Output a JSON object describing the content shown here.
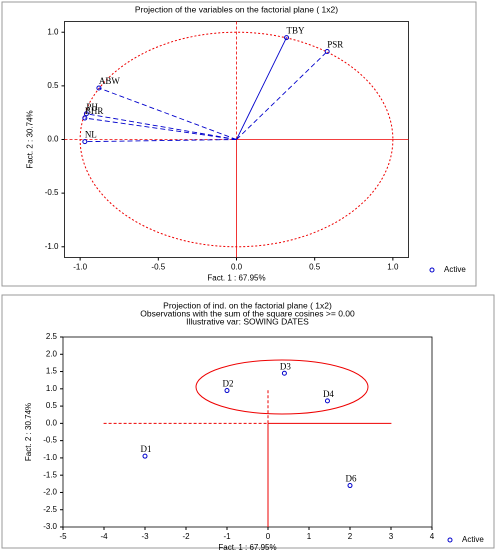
{
  "charts": [
    {
      "chart_data": {
        "type": "scatter",
        "title": "Projection of the variables on the factorial plane ( 1x2)",
        "x_label": "Fact. 1 : 67.95%",
        "y_label": "Fact. 2 : 30.74%",
        "xlim": [
          -1.1,
          1.1
        ],
        "ylim": [
          -1.1,
          1.1
        ],
        "xticks": [
          {
            "value": -1,
            "label": "-1.0"
          },
          {
            "value": -0.5,
            "label": "-0.5"
          },
          {
            "value": 0,
            "label": "0.0"
          },
          {
            "value": 0.5,
            "label": "0.5"
          },
          {
            "value": 1,
            "label": "1.0"
          }
        ],
        "yticks": [
          {
            "value": -1,
            "label": "-1.0"
          },
          {
            "value": -0.5,
            "label": "-0.5"
          },
          {
            "value": 0,
            "label": "0.0"
          },
          {
            "value": 0.5,
            "label": "0.5"
          },
          {
            "value": 1,
            "label": "1.0"
          }
        ],
        "point_labels": [
          "TBY",
          "PSR",
          "ABW",
          "PH",
          "BHR",
          "NL"
        ],
        "x": [
          0.32,
          0.58,
          -0.88,
          -0.96,
          -0.97,
          -0.97
        ],
        "series": [
          {
            "name": "Active",
            "color": "#0000cc",
            "values": [
              0.95,
              0.82,
              0.48,
              0.24,
              0.2,
              -0.02
            ]
          }
        ],
        "legend": "bottom-right"
      }
    },
    {
      "chart_data": {
        "type": "scatter",
        "title": "Projection of ind. on the factorial plane ( 1x2)",
        "subtitle": "Observations with the sum of the square cosines >= 0.00",
        "note": "Illustrative var: SOWING DATES",
        "x_label": "Fact. 1 : 67.95%",
        "y_label": "Fact. 2 : 30.74%",
        "xlim": [
          -5,
          4
        ],
        "ylim": [
          -3,
          2.5
        ],
        "xticks": [
          -5,
          -4,
          -3,
          -2,
          -1,
          0,
          1,
          2,
          3,
          4
        ],
        "yticks": [
          {
            "value": -3,
            "label": "-3.0"
          },
          {
            "value": -2.5,
            "label": "-2.5"
          },
          {
            "value": -2,
            "label": "-2.0"
          },
          {
            "value": -1.5,
            "label": "-1.5"
          },
          {
            "value": -1,
            "label": "-1.0"
          },
          {
            "value": -0.5,
            "label": "-0.5"
          },
          {
            "value": 0,
            "label": "0.0"
          },
          {
            "value": 0.5,
            "label": "0.5"
          },
          {
            "value": 1,
            "label": "1.0"
          },
          {
            "value": 1.5,
            "label": "1.5"
          },
          {
            "value": 2,
            "label": "2.0"
          },
          {
            "value": 2.5,
            "label": "2.5"
          }
        ],
        "point_labels": [
          "D1",
          "D2",
          "D3",
          "D4",
          "D6"
        ],
        "x": [
          -3,
          -1,
          0.4,
          1.45,
          2
        ],
        "series": [
          {
            "name": "Active",
            "color": "#0000cc",
            "values": [
              -0.95,
              0.95,
              1.45,
              0.65,
              -1.8
            ]
          }
        ],
        "legend": "bottom-right"
      }
    }
  ]
}
